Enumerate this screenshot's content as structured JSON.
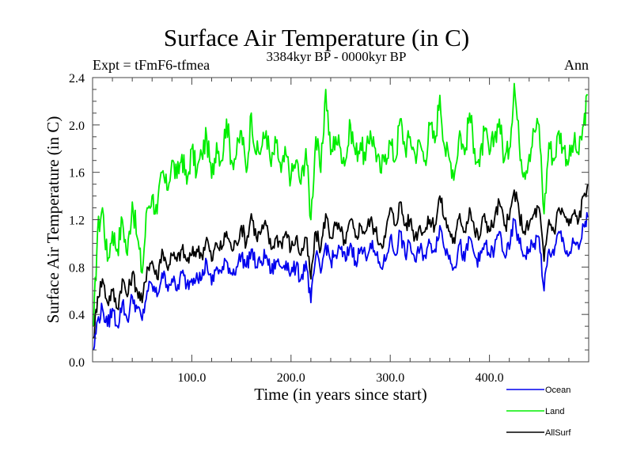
{
  "header": {
    "title": "Surface Air Temperature (in C)",
    "subtitle": "3384kyr BP - 0000kyr BP",
    "expt": "Expt = tFmF6-tfmea",
    "season": "Ann"
  },
  "chart_data": {
    "type": "line",
    "title": "Surface Air Temperature (in C)",
    "subtitle": "3384kyr BP - 0000kyr BP",
    "xlabel": "Time (in years since start)",
    "ylabel": "Surface Air Temperature (in C)",
    "xlim": [
      0,
      500
    ],
    "ylim": [
      0.0,
      2.4
    ],
    "xticks": [
      100,
      200,
      300,
      400
    ],
    "xtick_labels": [
      "100.0",
      "200.0",
      "300.0",
      "400.0"
    ],
    "x_minor_step": 20,
    "yticks": [
      0.0,
      0.4,
      0.8,
      1.2,
      1.6,
      2.0,
      2.4
    ],
    "ytick_labels": [
      "0.0",
      "0.4",
      "0.8",
      "1.2",
      "1.6",
      "2.0",
      "2.4"
    ],
    "y_minor_step": 0.1,
    "grid": false,
    "legend_position": "bottom-right-outside",
    "x": [
      1,
      5,
      10,
      15,
      20,
      25,
      30,
      35,
      40,
      45,
      50,
      55,
      60,
      65,
      70,
      75,
      80,
      85,
      90,
      95,
      100,
      105,
      110,
      115,
      120,
      125,
      130,
      135,
      140,
      145,
      150,
      155,
      160,
      165,
      170,
      175,
      180,
      185,
      190,
      195,
      200,
      205,
      210,
      215,
      220,
      225,
      230,
      235,
      240,
      245,
      250,
      255,
      260,
      265,
      270,
      275,
      280,
      285,
      290,
      295,
      300,
      305,
      310,
      315,
      320,
      325,
      330,
      335,
      340,
      345,
      350,
      355,
      360,
      365,
      370,
      375,
      380,
      385,
      390,
      395,
      400,
      405,
      410,
      415,
      420,
      425,
      430,
      435,
      440,
      445,
      450,
      455,
      460,
      465,
      470,
      475,
      480,
      485,
      490,
      495,
      499
    ],
    "series": [
      {
        "name": "Land",
        "color": "#00ee00",
        "values": [
          0.3,
          1.1,
          1.3,
          0.85,
          1.1,
          0.95,
          1.2,
          0.9,
          1.35,
          1.05,
          0.75,
          1.3,
          1.4,
          1.25,
          1.6,
          1.45,
          1.7,
          1.55,
          1.75,
          1.5,
          1.8,
          1.6,
          1.75,
          1.9,
          1.55,
          1.85,
          1.7,
          2.05,
          1.7,
          1.75,
          1.95,
          1.6,
          2.1,
          1.75,
          1.8,
          1.95,
          1.65,
          1.85,
          1.6,
          1.75,
          1.55,
          1.7,
          1.5,
          1.8,
          1.2,
          1.9,
          1.6,
          2.3,
          1.75,
          1.9,
          1.8,
          1.7,
          2.0,
          1.75,
          1.85,
          1.7,
          1.95,
          1.8,
          1.6,
          1.75,
          1.85,
          1.7,
          2.05,
          1.8,
          1.9,
          1.75,
          1.85,
          1.7,
          2.0,
          1.85,
          2.25,
          1.8,
          1.7,
          1.6,
          1.95,
          1.75,
          2.1,
          1.8,
          1.65,
          1.95,
          1.75,
          1.9,
          2.05,
          1.7,
          1.8,
          2.35,
          1.85,
          1.6,
          1.75,
          1.95,
          2.0,
          1.25,
          1.85,
          1.7,
          1.95,
          1.8,
          1.7,
          1.85,
          1.75,
          2.0,
          2.25
        ]
      },
      {
        "name": "AllSurf",
        "color": "#000000",
        "values": [
          0.2,
          0.55,
          0.7,
          0.5,
          0.6,
          0.45,
          0.7,
          0.55,
          0.75,
          0.6,
          0.5,
          0.8,
          0.85,
          0.7,
          0.95,
          0.8,
          0.9,
          0.85,
          0.95,
          0.85,
          0.9,
          0.95,
          0.9,
          1.05,
          0.85,
          1.0,
          0.95,
          1.1,
          0.95,
          1.0,
          1.15,
          1.0,
          1.25,
          1.05,
          1.1,
          1.15,
          0.95,
          1.05,
          1.0,
          1.1,
          0.95,
          1.05,
          0.9,
          1.05,
          0.7,
          1.1,
          0.95,
          1.25,
          1.05,
          1.15,
          1.1,
          1.0,
          1.2,
          1.05,
          1.15,
          1.1,
          1.2,
          1.1,
          1.0,
          1.05,
          1.3,
          1.15,
          1.35,
          1.15,
          1.2,
          1.05,
          1.15,
          1.1,
          1.2,
          1.15,
          1.4,
          1.2,
          1.1,
          1.0,
          1.25,
          1.1,
          1.3,
          1.1,
          1.05,
          1.25,
          1.1,
          1.2,
          1.35,
          1.15,
          1.2,
          1.45,
          1.25,
          1.1,
          1.15,
          1.25,
          1.3,
          0.85,
          1.2,
          1.1,
          1.3,
          1.25,
          1.15,
          1.25,
          1.2,
          1.4,
          1.5
        ]
      },
      {
        "name": "Ocean",
        "color": "#0000ee",
        "values": [
          0.1,
          0.35,
          0.45,
          0.3,
          0.45,
          0.3,
          0.5,
          0.35,
          0.55,
          0.45,
          0.35,
          0.6,
          0.65,
          0.55,
          0.75,
          0.65,
          0.7,
          0.6,
          0.75,
          0.65,
          0.7,
          0.75,
          0.7,
          0.85,
          0.65,
          0.8,
          0.75,
          0.85,
          0.75,
          0.8,
          0.9,
          0.8,
          0.95,
          0.8,
          0.85,
          0.9,
          0.75,
          0.85,
          0.8,
          0.85,
          0.75,
          0.8,
          0.7,
          0.85,
          0.5,
          0.9,
          0.75,
          1.0,
          0.85,
          0.9,
          0.95,
          0.85,
          1.0,
          0.85,
          0.95,
          0.9,
          1.0,
          0.9,
          0.8,
          0.85,
          1.05,
          0.9,
          1.1,
          0.9,
          1.0,
          0.85,
          0.95,
          0.9,
          1.0,
          0.95,
          1.15,
          0.95,
          0.9,
          0.8,
          1.0,
          0.85,
          1.05,
          0.9,
          0.85,
          1.0,
          0.9,
          0.95,
          1.1,
          0.9,
          0.95,
          1.2,
          1.0,
          0.9,
          0.95,
          1.0,
          1.05,
          0.6,
          0.95,
          0.9,
          1.1,
          1.0,
          0.9,
          1.0,
          0.95,
          1.15,
          1.22
        ]
      }
    ],
    "legend": [
      {
        "name": "Ocean",
        "color": "#0000ee"
      },
      {
        "name": "Land",
        "color": "#00ee00"
      },
      {
        "name": "AllSurf",
        "color": "#000000"
      }
    ]
  }
}
